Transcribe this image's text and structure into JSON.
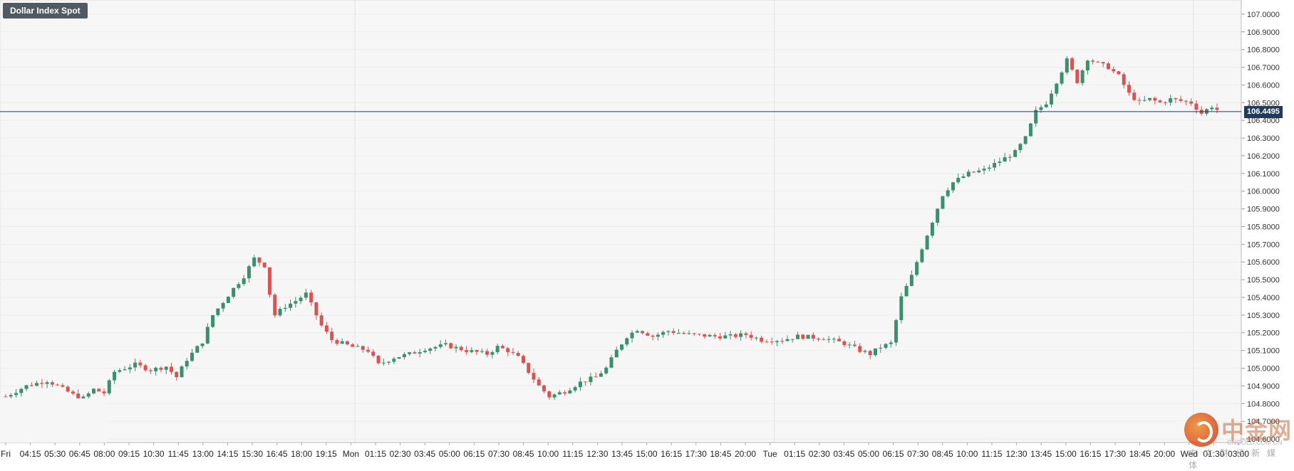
{
  "header": {
    "title": "Dollar Index Spot"
  },
  "current_price": {
    "label": "106.4495",
    "value": 106.4495
  },
  "watermark": {
    "cn": "中金网",
    "en": "CNGOLD.COM.CN",
    "sub": "中文财经新媒体"
  },
  "colors": {
    "up": "#3a8f6f",
    "down": "#d9534f",
    "price_line": "#1f3a5a",
    "grid": "#ececec",
    "plot_bg": "#f6f6f6"
  },
  "chart_data": {
    "type": "candlestick",
    "title": "Dollar Index Spot",
    "ylim": [
      104.58,
      107.08
    ],
    "y_ticks": [
      "107.0000",
      "106.9000",
      "106.8000",
      "106.7000",
      "106.6000",
      "106.5000",
      "106.4000",
      "106.3000",
      "106.2000",
      "106.1000",
      "106.0000",
      "105.9000",
      "105.8000",
      "105.7000",
      "105.6000",
      "105.5000",
      "105.4000",
      "105.3000",
      "105.2000",
      "105.1000",
      "105.0000",
      "104.9000",
      "104.8000",
      "104.7000",
      "104.6000"
    ],
    "x_labels": [
      "Fri",
      "04:15",
      "05:30",
      "06:45",
      "08:00",
      "09:15",
      "10:30",
      "11:45",
      "13:00",
      "14:15",
      "15:30",
      "16:45",
      "18:00",
      "19:15",
      "Mon",
      "01:15",
      "02:30",
      "03:45",
      "05:00",
      "06:15",
      "07:30",
      "08:45",
      "10:00",
      "11:15",
      "12:30",
      "13:45",
      "15:00",
      "16:15",
      "17:30",
      "18:45",
      "20:00",
      "Tue",
      "01:15",
      "02:30",
      "03:45",
      "05:00",
      "06:15",
      "07:30",
      "08:45",
      "10:00",
      "11:15",
      "12:30",
      "13:45",
      "15:00",
      "16:15",
      "17:30",
      "18:45",
      "20:00",
      "Wed",
      "01:30",
      "03:00"
    ],
    "session_breaks": [
      "Mon",
      "Tue",
      "Wed"
    ],
    "grid": true,
    "path_note": "",
    "price_path": [
      [
        0,
        104.84
      ],
      [
        4,
        104.9
      ],
      [
        8,
        104.93
      ],
      [
        10,
        104.9
      ],
      [
        13,
        104.85
      ],
      [
        15,
        104.83
      ],
      [
        17,
        104.88
      ],
      [
        19,
        104.86
      ],
      [
        21,
        104.98
      ],
      [
        25,
        105.02
      ],
      [
        28,
        104.99
      ],
      [
        31,
        105.01
      ],
      [
        33,
        104.95
      ],
      [
        35,
        105.05
      ],
      [
        38,
        105.15
      ],
      [
        40,
        105.3
      ],
      [
        44,
        105.45
      ],
      [
        46,
        105.52
      ],
      [
        48,
        105.62
      ],
      [
        50,
        105.58
      ],
      [
        51,
        105.42
      ],
      [
        52,
        105.3
      ],
      [
        54,
        105.35
      ],
      [
        56,
        105.38
      ],
      [
        58,
        105.42
      ],
      [
        61,
        105.24
      ],
      [
        63,
        105.16
      ],
      [
        65,
        105.14
      ],
      [
        67,
        105.12
      ],
      [
        70,
        105.1
      ],
      [
        72,
        105.02
      ],
      [
        75,
        105.06
      ],
      [
        78,
        105.08
      ],
      [
        81,
        105.11
      ],
      [
        85,
        105.13
      ],
      [
        89,
        105.1
      ],
      [
        93,
        105.08
      ],
      [
        95,
        105.12
      ],
      [
        97,
        105.1
      ],
      [
        99,
        105.06
      ],
      [
        101,
        104.98
      ],
      [
        103,
        104.9
      ],
      [
        105,
        104.84
      ],
      [
        108,
        104.87
      ],
      [
        111,
        104.92
      ],
      [
        114,
        104.95
      ],
      [
        116,
        105.0
      ],
      [
        118,
        105.1
      ],
      [
        120,
        105.18
      ],
      [
        122,
        105.22
      ],
      [
        125,
        105.18
      ],
      [
        128,
        105.21
      ],
      [
        132,
        105.19
      ],
      [
        137,
        105.18
      ],
      [
        140,
        105.18
      ],
      [
        143,
        105.19
      ],
      [
        146,
        105.16
      ],
      [
        150,
        105.16
      ],
      [
        153,
        105.18
      ],
      [
        158,
        105.17
      ],
      [
        162,
        105.14
      ],
      [
        165,
        105.1
      ],
      [
        167,
        105.08
      ],
      [
        169,
        105.12
      ],
      [
        171,
        105.14
      ],
      [
        173,
        105.4
      ],
      [
        175,
        105.52
      ],
      [
        177,
        105.68
      ],
      [
        179,
        105.83
      ],
      [
        181,
        105.98
      ],
      [
        183,
        106.05
      ],
      [
        186,
        106.1
      ],
      [
        189,
        106.12
      ],
      [
        192,
        106.17
      ],
      [
        195,
        106.22
      ],
      [
        197,
        106.3
      ],
      [
        199,
        106.45
      ],
      [
        201,
        106.5
      ],
      [
        203,
        106.62
      ],
      [
        205,
        106.74
      ],
      [
        207,
        106.62
      ],
      [
        209,
        106.75
      ],
      [
        211,
        106.72
      ],
      [
        213,
        106.7
      ],
      [
        215,
        106.65
      ],
      [
        217,
        106.55
      ],
      [
        219,
        106.5
      ],
      [
        221,
        106.52
      ],
      [
        223,
        106.5
      ],
      [
        225,
        106.52
      ],
      [
        227,
        106.51
      ],
      [
        229,
        106.5
      ],
      [
        231,
        106.44
      ],
      [
        233,
        106.48
      ],
      [
        234,
        106.46
      ]
    ]
  }
}
